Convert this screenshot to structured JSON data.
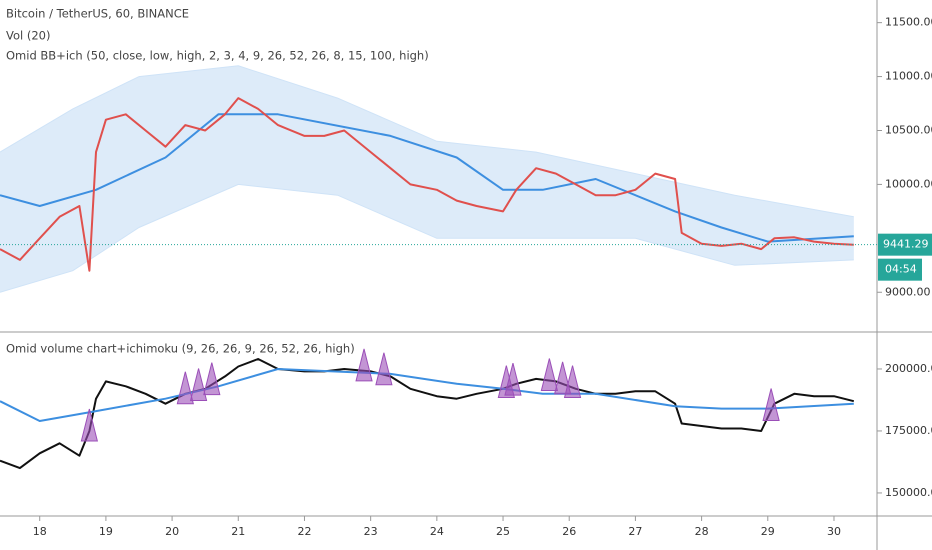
{
  "chart_data": [
    {
      "type": "line",
      "title": "Bitcoin / TetherUS, 60, BINANCE",
      "subtitles": [
        "Vol (20)",
        "Omid BB+ich (50, close, low, high, 2, 3, 4, 9, 26, 52, 26, 8, 15, 100, high)"
      ],
      "xlim": [
        17.4,
        30.65
      ],
      "ylim": [
        8650,
        11710
      ],
      "yticks": [
        {
          "value": 9000,
          "label": "9000.00"
        },
        {
          "value": 10000,
          "label": "10000.00"
        },
        {
          "value": 10500,
          "label": "10500.00"
        },
        {
          "value": 11000,
          "label": "11000.00"
        },
        {
          "value": 11500,
          "label": "11500.00"
        }
      ],
      "band": {
        "color": "#cfe3f7",
        "x": [
          17.4,
          18.5,
          19.5,
          21,
          22.5,
          24,
          25.5,
          27,
          28.5,
          30.3
        ],
        "upper": [
          10300,
          10700,
          11000,
          11100,
          10800,
          10400,
          10300,
          10100,
          9900,
          9700
        ],
        "lower": [
          9000,
          9200,
          9600,
          10000,
          9900,
          9500,
          9500,
          9500,
          9250,
          9300
        ]
      },
      "series": [
        {
          "color": "#3d8fe0",
          "x": [
            17.4,
            18.0,
            18.85,
            19.9,
            20.7,
            21.6,
            23.3,
            24.3,
            25.0,
            25.6,
            26.4,
            27.6,
            28.3,
            29.0,
            30.3
          ],
          "values": [
            9900,
            9800,
            9950,
            10250,
            10650,
            10650,
            10450,
            10250,
            9950,
            9950,
            10050,
            9750,
            9600,
            9470,
            9520
          ]
        },
        {
          "color": "#e0504d",
          "x": [
            17.4,
            17.7,
            18.0,
            18.3,
            18.6,
            18.75,
            18.85,
            19.0,
            19.3,
            19.6,
            19.9,
            20.2,
            20.5,
            20.8,
            21.0,
            21.3,
            21.6,
            22.0,
            22.3,
            22.6,
            23.0,
            23.3,
            23.6,
            24.0,
            24.3,
            24.6,
            25.0,
            25.2,
            25.5,
            25.8,
            26.1,
            26.4,
            26.7,
            27.0,
            27.3,
            27.6,
            27.7,
            28.0,
            28.3,
            28.6,
            28.9,
            29.1,
            29.4,
            29.7,
            30.0,
            30.3
          ],
          "values": [
            9400,
            9300,
            9500,
            9700,
            9800,
            9200,
            10300,
            10600,
            10650,
            10500,
            10350,
            10550,
            10500,
            10650,
            10800,
            10700,
            10550,
            10450,
            10450,
            10500,
            10300,
            10150,
            10000,
            9950,
            9850,
            9800,
            9750,
            9950,
            10150,
            10100,
            10000,
            9900,
            9900,
            9950,
            10100,
            10050,
            9550,
            9450,
            9430,
            9450,
            9400,
            9500,
            9510,
            9470,
            9450,
            9441
          ]
        }
      ],
      "last_price": 9441.29,
      "last_price_color": "#26a69a",
      "countdown": "04:54"
    },
    {
      "type": "line",
      "title": "Omid volume chart+ichimoku (9, 26, 26, 9, 26, 52, 26, high)",
      "xlim": [
        17.4,
        30.65
      ],
      "ylim": [
        141100,
        213700
      ],
      "yticks": [
        {
          "value": 150000,
          "label": "150000.00"
        },
        {
          "value": 175000,
          "label": "175000.00"
        },
        {
          "value": 200000,
          "label": "200000.00"
        }
      ],
      "xticks": [
        18,
        19,
        20,
        21,
        22,
        23,
        24,
        25,
        26,
        27,
        28,
        29,
        30
      ],
      "series": [
        {
          "color": "#111111",
          "x": [
            17.4,
            17.7,
            18.0,
            18.3,
            18.6,
            18.75,
            18.85,
            19.0,
            19.3,
            19.6,
            19.9,
            20.2,
            20.5,
            20.8,
            21.0,
            21.3,
            21.6,
            22.0,
            22.3,
            22.6,
            23.0,
            23.3,
            23.6,
            24.0,
            24.3,
            24.6,
            25.0,
            25.2,
            25.5,
            25.8,
            26.1,
            26.4,
            26.7,
            27.0,
            27.3,
            27.6,
            27.7,
            28.0,
            28.3,
            28.6,
            28.9,
            29.1,
            29.4,
            29.7,
            30.0,
            30.3
          ],
          "values": [
            163000,
            160000,
            166000,
            170000,
            165000,
            175000,
            188000,
            195000,
            193000,
            190000,
            186000,
            190000,
            192000,
            197000,
            201000,
            204000,
            200000,
            199000,
            199000,
            200000,
            199000,
            197000,
            192000,
            189000,
            188000,
            190000,
            192000,
            194000,
            196000,
            195000,
            192000,
            190000,
            190000,
            191000,
            191000,
            186000,
            178000,
            177000,
            176000,
            176000,
            175000,
            186000,
            190000,
            189000,
            189000,
            187000
          ]
        },
        {
          "color": "#3d8fe0",
          "x": [
            17.4,
            18.0,
            18.85,
            19.9,
            20.7,
            21.6,
            23.3,
            24.3,
            25.0,
            25.6,
            26.4,
            27.6,
            28.3,
            29.0,
            30.3
          ],
          "values": [
            187000,
            179000,
            183000,
            188000,
            193000,
            200000,
            198000,
            194000,
            192000,
            190000,
            190000,
            185000,
            184000,
            184000,
            186000
          ]
        }
      ],
      "signals": {
        "color": "#9b4fb8",
        "x": [
          18.75,
          20.2,
          20.4,
          20.6,
          22.9,
          23.2,
          25.05,
          25.15,
          25.7,
          25.9,
          26.05,
          29.05
        ]
      }
    }
  ]
}
